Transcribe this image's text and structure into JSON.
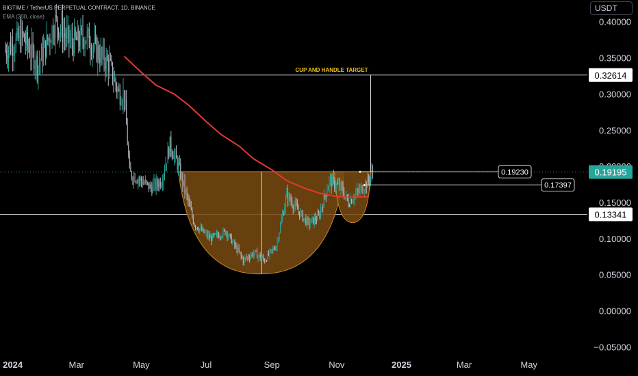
{
  "header": {
    "symbol_line": "BIGTIME / TetherUS PERPETUAL CONTRACT, 1D, BINANCE",
    "indicator_line": "EMA (200, close)"
  },
  "axis_currency": "USDT",
  "colors": {
    "background": "#000000",
    "up": "#26a69a",
    "down": "#b2b5be",
    "ema": "#e53935",
    "cup_fill": "#7a4a10",
    "cup_stroke": "#c8882a",
    "current_price_bg": "#26a69a",
    "annotation": "#f0c419",
    "level_line": "#d1d4dc"
  },
  "chart_data": {
    "type": "candlestick",
    "title": "",
    "y_ticks": [
      "0.40000",
      "0.35000",
      "0.30000",
      "0.25000",
      "0.20000",
      "0.15000",
      "0.10000",
      "0.05000",
      "0.00000",
      "−0.05000"
    ],
    "y_tick_values": [
      0.4,
      0.35,
      0.3,
      0.25,
      0.2,
      0.15,
      0.1,
      0.05,
      0.0,
      -0.05
    ],
    "ylim": [
      -0.06,
      0.43
    ],
    "x_ticks": [
      "2024",
      "Mar",
      "May",
      "Jul",
      "Sep",
      "Nov",
      "2025",
      "Mar",
      "May"
    ],
    "x_tick_dates": [
      "2024-01-01",
      "2024-03-01",
      "2024-05-01",
      "2024-07-01",
      "2024-09-01",
      "2024-11-01",
      "2025-01-01",
      "2025-03-01",
      "2025-05-01"
    ],
    "xlim": [
      "2023-12-20",
      "2025-06-25"
    ],
    "price_series": {
      "name": "BIGTIME / TetherUS PERPETUAL CONTRACT",
      "anchor_dates": [
        "2023-12-25",
        "2024-01-10",
        "2024-01-25",
        "2024-02-10",
        "2024-02-25",
        "2024-03-10",
        "2024-03-20",
        "2024-04-01",
        "2024-04-10",
        "2024-04-15",
        "2024-04-20",
        "2024-05-01",
        "2024-05-10",
        "2024-05-20",
        "2024-05-28",
        "2024-06-05",
        "2024-06-20",
        "2024-07-05",
        "2024-07-20",
        "2024-08-05",
        "2024-08-15",
        "2024-08-25",
        "2024-09-05",
        "2024-09-15",
        "2024-09-25",
        "2024-10-05",
        "2024-10-15",
        "2024-10-25",
        "2024-11-05",
        "2024-11-12",
        "2024-11-18",
        "2024-11-25",
        "2024-12-01",
        "2024-12-05"
      ],
      "anchor_closes": [
        0.36,
        0.38,
        0.34,
        0.4,
        0.37,
        0.38,
        0.36,
        0.34,
        0.3,
        0.3,
        0.19,
        0.18,
        0.17,
        0.18,
        0.23,
        0.2,
        0.12,
        0.1,
        0.11,
        0.07,
        0.08,
        0.07,
        0.09,
        0.16,
        0.14,
        0.12,
        0.13,
        0.18,
        0.17,
        0.15,
        0.16,
        0.17,
        0.18,
        0.19195
      ]
    },
    "ema_series": {
      "name": "EMA (200, close)",
      "dates": [
        "2024-04-15",
        "2024-05-01",
        "2024-05-15",
        "2024-06-01",
        "2024-06-15",
        "2024-07-01",
        "2024-07-15",
        "2024-08-01",
        "2024-08-15",
        "2024-09-01",
        "2024-09-15",
        "2024-10-01",
        "2024-10-15",
        "2024-11-01",
        "2024-11-15",
        "2024-12-01"
      ],
      "values": [
        0.352,
        0.33,
        0.312,
        0.3,
        0.284,
        0.262,
        0.244,
        0.228,
        0.21,
        0.195,
        0.18,
        0.17,
        0.163,
        0.158,
        0.157,
        0.158
      ]
    },
    "horizontal_levels": [
      {
        "value": 0.32614,
        "label": "0.32614"
      },
      {
        "value": 0.13341,
        "label": "0.13341"
      }
    ],
    "current_price": {
      "value": 0.19195,
      "label": "0.19195"
    },
    "price_callouts": [
      {
        "value": 0.1923,
        "label": "0.19230",
        "date": "2024-11-23"
      },
      {
        "value": 0.17397,
        "label": "0.17397",
        "date": "2024-11-27"
      }
    ],
    "cup_and_handle": {
      "rim_value": 0.1923,
      "cup_start": "2024-06-05",
      "cup_end": "2024-11-08",
      "cup_bottom_value": 0.051,
      "handle_start": "2024-10-30",
      "handle_end": "2024-12-03",
      "handle_bottom_value": 0.122,
      "target_value": 0.32614,
      "target_date": "2024-12-03",
      "annotation": "CUP AND HANDLE TARGET"
    }
  }
}
